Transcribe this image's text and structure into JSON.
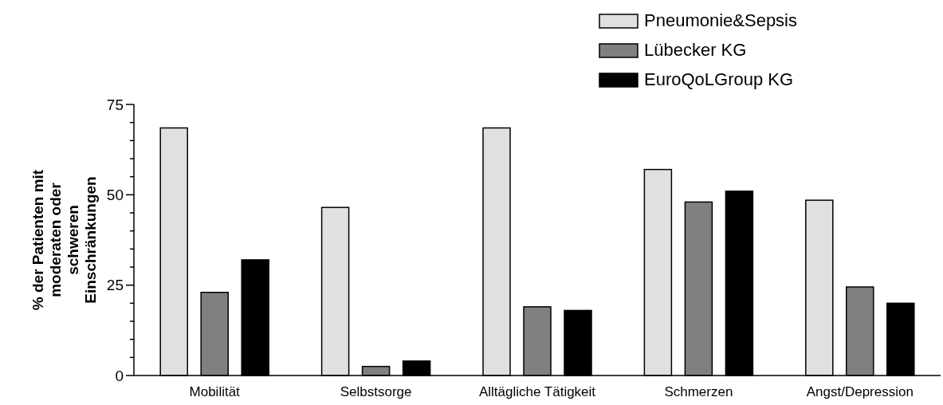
{
  "chart_data": {
    "type": "bar",
    "ylabel": "% der Patienten mit moderaten oder schweren Einschränkungen",
    "categories": [
      "Mobilität",
      "Selbstsorge",
      "Alltägliche Tätigkeit",
      "Schmerzen",
      "Angst/Depression"
    ],
    "series": [
      {
        "name": "Pneumonie&Sepsis",
        "color": "#e0e0e0",
        "values": [
          68.5,
          46.5,
          68.5,
          57,
          48.5
        ]
      },
      {
        "name": "Lübecker KG",
        "color": "#808080",
        "values": [
          23,
          2.5,
          19,
          48,
          24.5
        ]
      },
      {
        "name": "EuroQoLGroup KG",
        "color": "#000000",
        "values": [
          32,
          4,
          18,
          51,
          20
        ]
      }
    ],
    "ylim": [
      0,
      75
    ],
    "yticks": [
      0,
      {
        "value": 5,
        "label": null
      },
      {
        "value": 10,
        "label": null
      },
      {
        "value": 15,
        "label": null
      },
      {
        "value": 20,
        "label": null
      },
      25,
      {
        "value": 30,
        "label": null
      },
      {
        "value": 35,
        "label": null
      },
      {
        "value": 40,
        "label": null
      },
      {
        "value": 45,
        "label": null
      },
      50,
      {
        "value": 55,
        "label": null
      },
      {
        "value": 60,
        "label": null
      },
      {
        "value": 65,
        "label": null
      },
      {
        "value": 70,
        "label": null
      },
      75
    ],
    "grid": false,
    "legend": "top right"
  }
}
